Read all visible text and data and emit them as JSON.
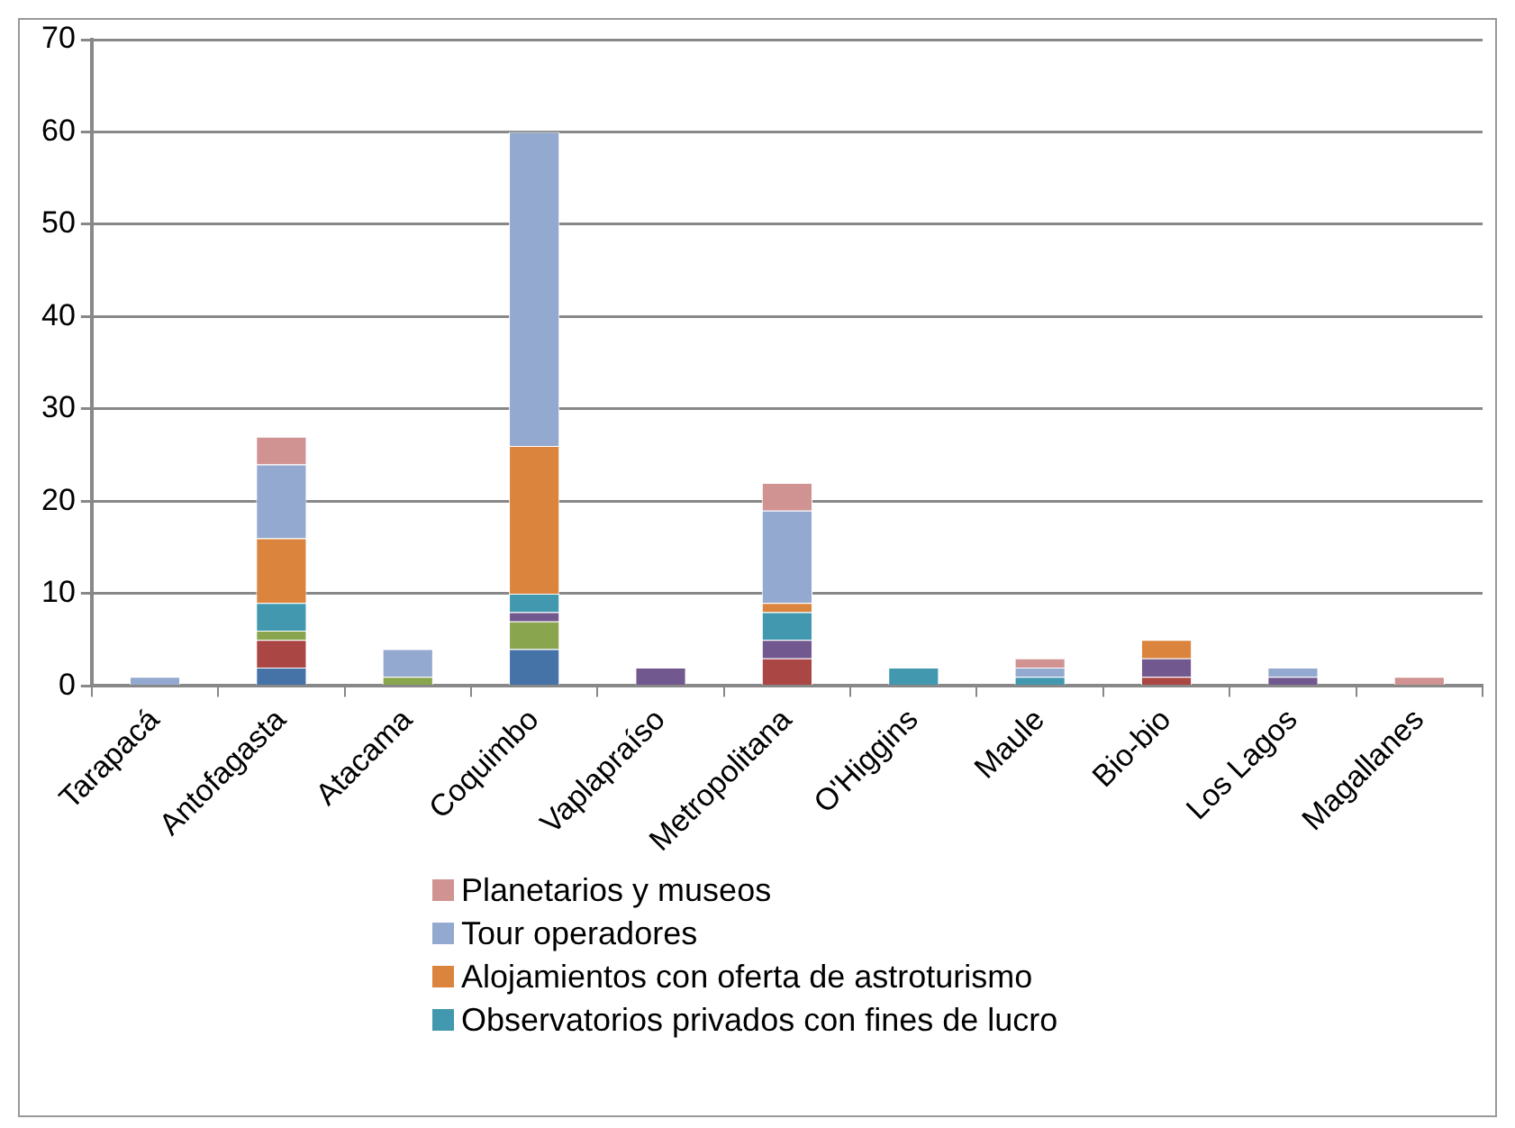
{
  "chart_data": {
    "type": "bar",
    "stacked": true,
    "categories": [
      "Tarapacá",
      "Antofagasta",
      "Atacama",
      "Coquimbo",
      "Vaplapraíso",
      "Metropolitana",
      "O'Higgins",
      "Maule",
      "Bio-bio",
      "Los Lagos",
      "Magallanes"
    ],
    "series": [
      {
        "color": "#4572a7",
        "values": [
          0,
          2,
          0,
          4,
          0,
          0,
          0,
          0,
          0,
          0,
          0
        ]
      },
      {
        "color": "#aa4643",
        "values": [
          0,
          3,
          0,
          0,
          0,
          3,
          0,
          0,
          1,
          0,
          0
        ]
      },
      {
        "color": "#89a54e",
        "values": [
          0,
          1,
          1,
          3,
          0,
          0,
          0,
          0,
          0,
          0,
          0
        ]
      },
      {
        "color": "#71588f",
        "values": [
          0,
          0,
          0,
          1,
          2,
          2,
          0,
          0,
          2,
          1,
          0
        ]
      },
      {
        "name": "Observatorios privados con fines de lucro",
        "color": "#4198af",
        "values": [
          0,
          3,
          0,
          2,
          0,
          3,
          2,
          1,
          0,
          0,
          0
        ]
      },
      {
        "name": "Alojamientos con oferta de astroturismo",
        "color": "#db843d",
        "values": [
          0,
          7,
          0,
          16,
          0,
          1,
          0,
          0,
          2,
          0,
          0
        ]
      },
      {
        "name": "Tour operadores",
        "color": "#93a9cf",
        "values": [
          1,
          8,
          3,
          34,
          0,
          10,
          0,
          1,
          0,
          1,
          0
        ]
      },
      {
        "name": "Planetarios y museos",
        "color": "#d19392",
        "values": [
          0,
          3,
          0,
          0,
          0,
          3,
          0,
          1,
          0,
          0,
          1
        ]
      }
    ],
    "ylim": [
      0,
      70
    ],
    "yticks": [
      0,
      10,
      20,
      30,
      40,
      50,
      60,
      70
    ],
    "grid": "y",
    "legend": "bottom"
  }
}
